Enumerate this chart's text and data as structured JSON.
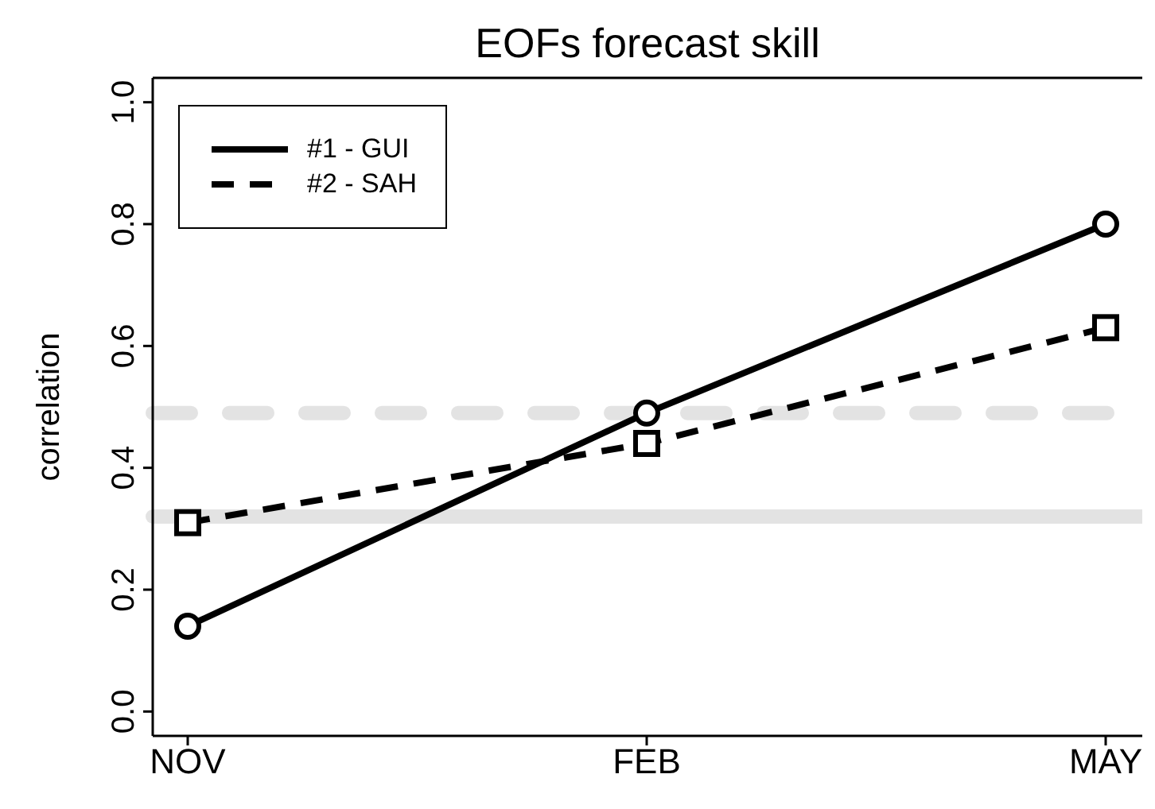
{
  "chart_data": {
    "type": "line",
    "title": "EOFs forecast skill",
    "ylabel": "correlation",
    "categories": [
      "NOV",
      "FEB",
      "MAY"
    ],
    "series": [
      {
        "name": "#1 - GUI",
        "color": "#000000",
        "values": [
          0.14,
          0.49,
          0.8
        ],
        "marker": "circle",
        "line_style": "solid"
      },
      {
        "name": "#2 - SAH",
        "color": "#000000",
        "values": [
          0.31,
          0.44,
          0.63
        ],
        "marker": "square",
        "line_style": "dashed"
      }
    ],
    "ylim": [
      -0.04,
      1.04
    ],
    "yticks": [
      {
        "value": 0,
        "label": "0.0"
      },
      0.2,
      0.4,
      0.6,
      0.8,
      {
        "value": 1,
        "label": "1.0"
      }
    ],
    "ref_lines": [
      {
        "axis": "y",
        "value": 0.49,
        "color": "#e3e3e3",
        "line_style": "dashed"
      },
      {
        "axis": "y",
        "value": 0.32,
        "color": "#e3e3e3",
        "line_style": "solid"
      }
    ],
    "grid": false,
    "legend": "top left"
  }
}
